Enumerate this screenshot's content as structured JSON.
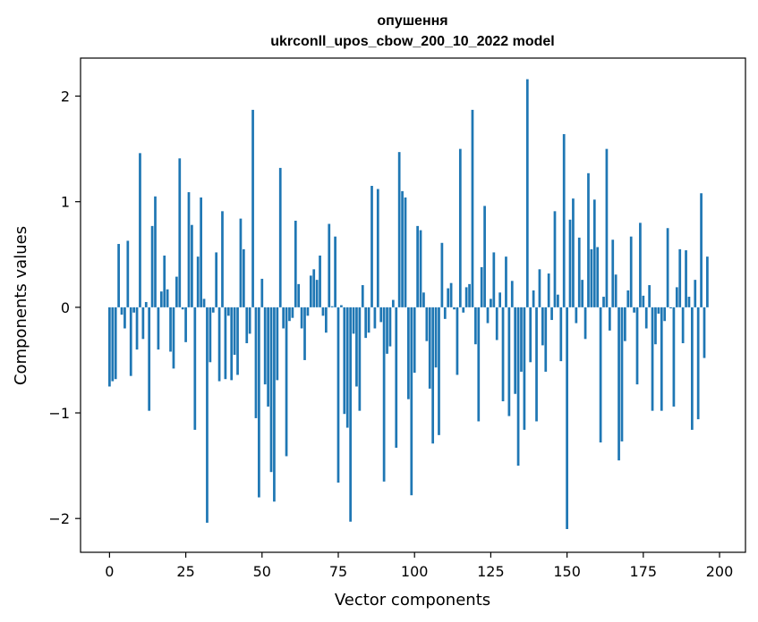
{
  "chart_data": {
    "type": "bar",
    "title_line1": "опушення",
    "title_line2": "ukrconll_upos_cbow_200_10_2022 model",
    "xlabel": "Vector components",
    "ylabel": "Components values",
    "xlim": [
      -9.5,
      208.5
    ],
    "ylim": [
      -2.32,
      2.36
    ],
    "xticks": [
      0,
      25,
      50,
      75,
      100,
      125,
      150,
      175,
      200
    ],
    "xtick_labels": [
      "0",
      "25",
      "50",
      "75",
      "100",
      "125",
      "150",
      "175",
      "200"
    ],
    "yticks": [
      -2,
      -1,
      0,
      1,
      2
    ],
    "ytick_labels": [
      "−2",
      "−1",
      "0",
      "1",
      "2"
    ],
    "bar_color": "#1f77b4",
    "values": [
      -0.75,
      -0.7,
      -0.68,
      0.6,
      -0.07,
      -0.2,
      0.63,
      -0.65,
      -0.05,
      -0.4,
      1.46,
      -0.3,
      0.05,
      -0.98,
      0.77,
      1.05,
      -0.4,
      0.15,
      0.49,
      0.17,
      -0.42,
      -0.58,
      0.29,
      1.41,
      -0.02,
      -0.33,
      1.09,
      0.78,
      -1.16,
      0.48,
      1.04,
      0.08,
      -2.04,
      -0.52,
      -0.05,
      0.52,
      -0.7,
      0.91,
      -0.68,
      -0.08,
      -0.69,
      -0.45,
      -0.64,
      0.84,
      0.55,
      -0.34,
      -0.25,
      1.87,
      -1.05,
      -1.8,
      0.27,
      -0.73,
      -0.94,
      -1.56,
      -1.84,
      -0.69,
      1.32,
      -0.2,
      -1.41,
      -0.13,
      -0.1,
      0.82,
      0.22,
      -0.2,
      -0.5,
      -0.08,
      0.3,
      0.36,
      0.26,
      0.49,
      -0.08,
      -0.24,
      0.79,
      0.01,
      0.67,
      -1.66,
      0.02,
      -1.01,
      -1.14,
      -2.03,
      -0.25,
      -0.75,
      -0.98,
      0.21,
      -0.29,
      -0.24,
      1.15,
      -0.2,
      1.12,
      -0.14,
      -1.65,
      -0.44,
      -0.37,
      0.07,
      -1.33,
      1.47,
      1.1,
      1.04,
      -0.87,
      -1.78,
      -0.62,
      0.77,
      0.73,
      0.14,
      -0.32,
      -0.77,
      -1.29,
      -0.57,
      -1.21,
      0.61,
      -0.11,
      0.18,
      0.23,
      -0.02,
      -0.64,
      1.5,
      -0.05,
      0.19,
      0.22,
      1.87,
      -0.35,
      -1.08,
      0.38,
      0.96,
      -0.15,
      0.08,
      0.52,
      -0.31,
      0.14,
      -0.89,
      0.48,
      -1.03,
      0.25,
      -0.82,
      -1.5,
      -0.61,
      -1.16,
      2.16,
      -0.52,
      0.16,
      -1.08,
      0.36,
      -0.36,
      -0.61,
      0.32,
      -0.12,
      0.91,
      0.12,
      -0.51,
      1.64,
      -2.1,
      0.83,
      1.03,
      -0.15,
      0.66,
      0.26,
      -0.3,
      1.27,
      0.55,
      1.02,
      0.57,
      -1.28,
      0.1,
      1.5,
      -0.22,
      0.64,
      0.31,
      -1.45,
      -1.27,
      -0.32,
      0.16,
      0.67,
      -0.05,
      -0.73,
      0.8,
      0.11,
      -0.2,
      0.21,
      -0.98,
      -0.35,
      -0.06,
      -0.98,
      -0.13,
      0.75,
      -0.01,
      -0.94,
      0.19,
      0.55,
      -0.34,
      0.54,
      0.1,
      -1.16,
      0.26,
      -1.06,
      1.08,
      -0.48,
      0.48
    ]
  }
}
